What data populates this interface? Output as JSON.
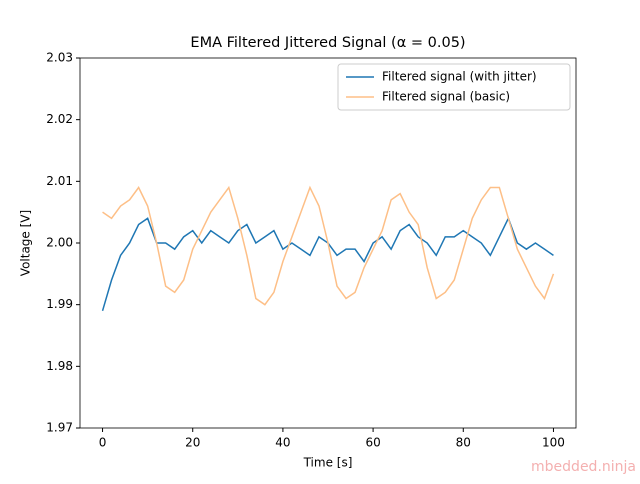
{
  "chart_data": {
    "type": "line",
    "title": "EMA Filtered Jittered Signal (α = 0.05)",
    "x_label": "Time [s]",
    "y_label": "Voltage [V]",
    "watermark": "mbedded.ninja",
    "x": [
      0,
      2,
      4,
      6,
      8,
      10,
      12,
      14,
      16,
      18,
      20,
      22,
      24,
      26,
      28,
      30,
      32,
      34,
      36,
      38,
      40,
      42,
      44,
      46,
      48,
      50,
      52,
      54,
      56,
      58,
      60,
      62,
      64,
      66,
      68,
      70,
      72,
      74,
      76,
      78,
      80,
      82,
      84,
      86,
      88,
      90,
      92,
      94,
      96,
      98,
      100
    ],
    "series": [
      {
        "name": "Filtered signal (with jitter)",
        "color": "#1f77b4",
        "values": [
          1.989,
          1.994,
          1.998,
          2.0,
          2.003,
          2.004,
          2.0,
          2.0,
          1.999,
          2.001,
          2.002,
          2.0,
          2.002,
          2.001,
          2.0,
          2.002,
          2.003,
          2.0,
          2.001,
          2.002,
          1.999,
          2.0,
          1.999,
          1.998,
          2.001,
          2.0,
          1.998,
          1.999,
          1.999,
          1.997,
          2.0,
          2.001,
          1.999,
          2.002,
          2.003,
          2.001,
          2.0,
          1.998,
          2.001,
          2.001,
          2.002,
          2.001,
          2.0,
          1.998,
          2.001,
          2.004,
          2.0,
          1.999,
          2.0,
          1.999,
          1.998
        ]
      },
      {
        "name": "Filtered signal (basic)",
        "color": "#fdbf87",
        "values": [
          2.005,
          2.004,
          2.006,
          2.007,
          2.009,
          2.006,
          2.0,
          1.993,
          1.992,
          1.994,
          1.999,
          2.002,
          2.005,
          2.007,
          2.009,
          2.004,
          1.998,
          1.991,
          1.99,
          1.992,
          1.997,
          2.001,
          2.005,
          2.009,
          2.006,
          2.0,
          1.993,
          1.991,
          1.992,
          1.996,
          1.999,
          2.002,
          2.007,
          2.008,
          2.005,
          2.003,
          1.996,
          1.991,
          1.992,
          1.994,
          1.999,
          2.004,
          2.007,
          2.009,
          2.009,
          2.004,
          1.999,
          1.996,
          1.993,
          1.991,
          1.995
        ]
      }
    ],
    "xlim": [
      -5,
      105
    ],
    "xticks": [
      0,
      20,
      40,
      60,
      80,
      100
    ],
    "ylim": [
      1.97,
      2.03
    ],
    "yticks": [
      1.97,
      1.98,
      1.99,
      {
        "value": 2,
        "label": "2.00"
      },
      2.01,
      2.02,
      2.03
    ],
    "legend": "upper right"
  }
}
